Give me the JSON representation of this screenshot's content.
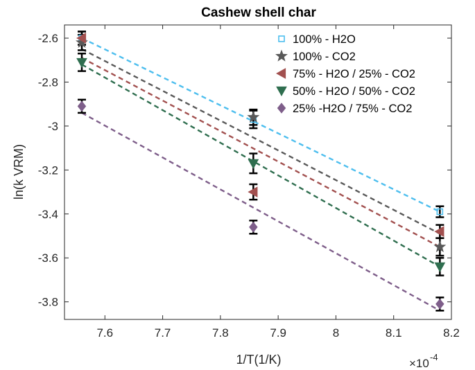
{
  "chart_data": {
    "type": "scatter",
    "title": "Cashew shell char",
    "xlabel": "1/T(1/K)",
    "ylabel": "ln(k VRM)",
    "x_exponent_base": "×10",
    "x_exponent_power": "-4",
    "xlim": [
      7.53,
      8.2
    ],
    "ylim": [
      -3.88,
      -2.54
    ],
    "xticks": [
      7.6,
      7.7,
      7.8,
      7.9,
      8.0,
      8.1,
      8.2
    ],
    "xtick_labels": [
      "7.6",
      "7.7",
      "7.8",
      "7.9",
      "8",
      "8.1",
      "8.2"
    ],
    "yticks": [
      -3.8,
      -3.6,
      -3.4,
      -3.2,
      -3.0,
      -2.8,
      -2.6
    ],
    "ytick_labels": [
      "-3.8",
      "-3.6",
      "-3.4",
      "-3.2",
      "-3",
      "-2.8",
      "-2.6"
    ],
    "grid": false,
    "legend_position": "top-right",
    "x": [
      7.56,
      7.857,
      8.18
    ],
    "series": [
      {
        "name": "100% - H2O",
        "marker": "square",
        "color": "#4DBEEE",
        "values": [
          -2.6,
          -2.97,
          -3.39
        ],
        "error": [
          0.03,
          0.04,
          0.025
        ],
        "fit": [
          -2.6,
          -3.39
        ]
      },
      {
        "name": "100% - CO2",
        "marker": "star",
        "color": "#595959",
        "values": [
          -2.62,
          -2.96,
          -3.55
        ],
        "error": [
          0.035,
          0.035,
          0.04
        ],
        "fit": [
          -2.65,
          -3.49
        ]
      },
      {
        "name": "75% - H2O / 25% - CO2",
        "marker": "triangle-left",
        "color": "#A2504F",
        "values": [
          -2.6,
          -3.3,
          -3.48
        ],
        "error": [
          0.03,
          0.035,
          0.03
        ],
        "fit": [
          -2.69,
          -3.55
        ]
      },
      {
        "name": "50% - H2O / 50% - CO2",
        "marker": "triangle-down",
        "color": "#2F6E4F",
        "values": [
          -2.71,
          -3.17,
          -3.64
        ],
        "error": [
          0.04,
          0.045,
          0.04
        ],
        "fit": [
          -2.72,
          -3.64
        ]
      },
      {
        "name": "25% -H2O / 75% - CO2",
        "marker": "diamond",
        "color": "#7E5E8A",
        "values": [
          -2.91,
          -3.46,
          -3.81
        ],
        "error": [
          0.03,
          0.03,
          0.03
        ],
        "fit": [
          -2.94,
          -3.84
        ]
      }
    ]
  }
}
